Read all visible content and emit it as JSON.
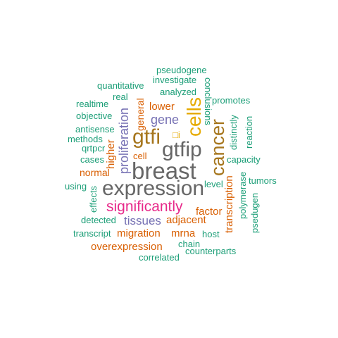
{
  "colors": {
    "green": "#1b9e77",
    "orange": "#d95f02",
    "purple": "#7570b3",
    "magenta": "#e7298a",
    "olive": "#66a61e",
    "gold": "#e6ab02",
    "brown": "#a6761d",
    "gray": "#666666"
  },
  "words": {
    "pseudogene": "pseudogene",
    "investigate": "investigate",
    "quantitative": "quantitative",
    "analyzed": "analyzed",
    "real": "real",
    "realtime": "realtime",
    "promotes": "promotes",
    "objective": "objective",
    "lower": "lower",
    "antisense": "antisense",
    "gene": "gene",
    "methods": "methods",
    "qrtpcr": "qrtpcr",
    "gtfi": "gtfi",
    "gtfip": "gtfip",
    "glyph": "□i",
    "cell": "cell",
    "cases": "cases",
    "breast": "breast",
    "capacity": "capacity",
    "normal": "normal",
    "using": "using",
    "tumors": "tumors",
    "expression": "expression",
    "significantly": "significantly",
    "level": "level",
    "factor": "factor",
    "detected": "detected",
    "tissues": "tissues",
    "adjacent": "adjacent",
    "transcript": "transcript",
    "migration": "migration",
    "mrna": "mrna",
    "host": "host",
    "overexpression": "overexpression",
    "chain": "chain",
    "counterparts": "counterparts",
    "correlated": "correlated",
    "cells": "cells",
    "cancer": "cancer",
    "conclusions": "conclusions",
    "distinctly": "distinctly",
    "reaction": "reaction",
    "proliferation": "proliferation",
    "general": "general",
    "higher": "higher",
    "transcription": "transcription",
    "polymerase": "polymerase",
    "psedugen": "psedugen",
    "effects": "effects"
  }
}
